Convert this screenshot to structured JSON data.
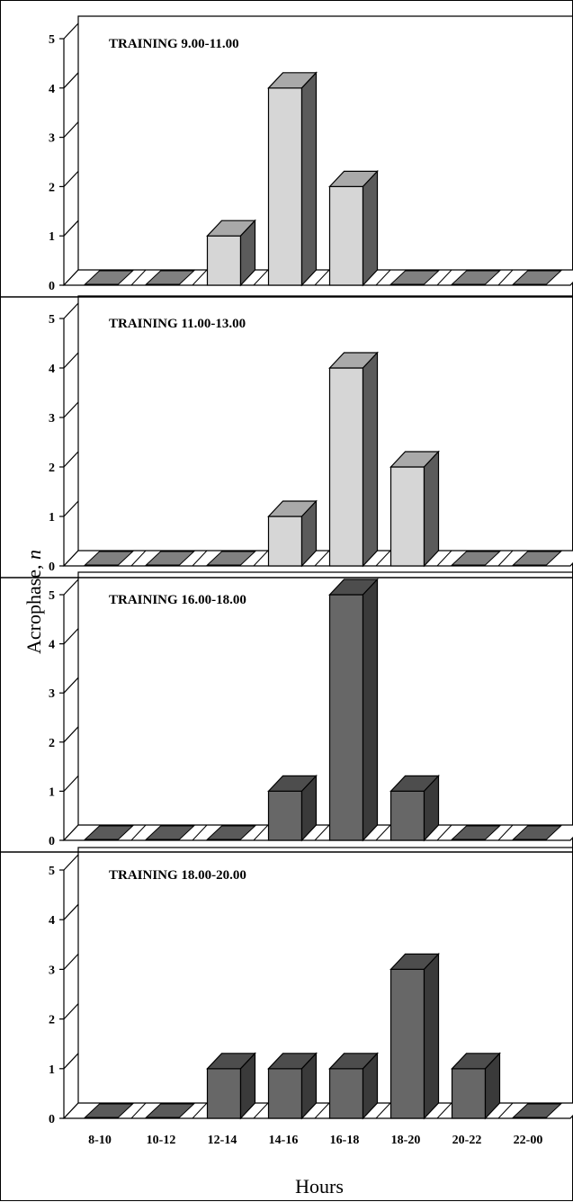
{
  "figure": {
    "ylabel_main": "Acrophase, ",
    "ylabel_var": "n",
    "xlabel": "Hours"
  },
  "colors": {
    "light_bar": "#d6d6d6",
    "dark_bar": "#676767",
    "floor_tile_gray": "#808080",
    "floor_tile_white": "#ffffff",
    "outline": "#000000"
  },
  "chart_data": [
    {
      "type": "bar",
      "title": "TRAINING 9.00-11.00",
      "categories": [
        "8-10",
        "10-12",
        "12-14",
        "14-16",
        "16-18",
        "18-20",
        "20-22",
        "22-00"
      ],
      "values": [
        0,
        0,
        1,
        4,
        2,
        0,
        0,
        0
      ],
      "ylim": [
        0,
        5
      ],
      "yticks": [
        0,
        1,
        2,
        3,
        4,
        5
      ],
      "bar_color": "light",
      "xlabel": "",
      "ylabel": ""
    },
    {
      "type": "bar",
      "title": "TRAINING 11.00-13.00",
      "categories": [
        "8-10",
        "10-12",
        "12-14",
        "14-16",
        "16-18",
        "18-20",
        "20-22",
        "22-00"
      ],
      "values": [
        0,
        0,
        0,
        1,
        4,
        2,
        0,
        0
      ],
      "ylim": [
        0,
        5
      ],
      "yticks": [
        0,
        1,
        2,
        3,
        4,
        5
      ],
      "bar_color": "light",
      "xlabel": "",
      "ylabel": ""
    },
    {
      "type": "bar",
      "title": "TRAINING 16.00-18.00",
      "categories": [
        "8-10",
        "10-12",
        "12-14",
        "14-16",
        "16-18",
        "18-20",
        "20-22",
        "22-00"
      ],
      "values": [
        0,
        0,
        0,
        1,
        5,
        1,
        0,
        0
      ],
      "ylim": [
        0,
        5
      ],
      "yticks": [
        0,
        1,
        2,
        3,
        4,
        5
      ],
      "bar_color": "dark",
      "xlabel": "",
      "ylabel": ""
    },
    {
      "type": "bar",
      "title": "TRAINING 18.00-20.00",
      "categories": [
        "8-10",
        "10-12",
        "12-14",
        "14-16",
        "16-18",
        "18-20",
        "20-22",
        "22-00"
      ],
      "values": [
        0,
        0,
        1,
        1,
        1,
        3,
        1,
        0
      ],
      "ylim": [
        0,
        5
      ],
      "yticks": [
        0,
        1,
        2,
        3,
        4,
        5
      ],
      "bar_color": "dark",
      "xlabel": "Hours",
      "ylabel": ""
    }
  ]
}
